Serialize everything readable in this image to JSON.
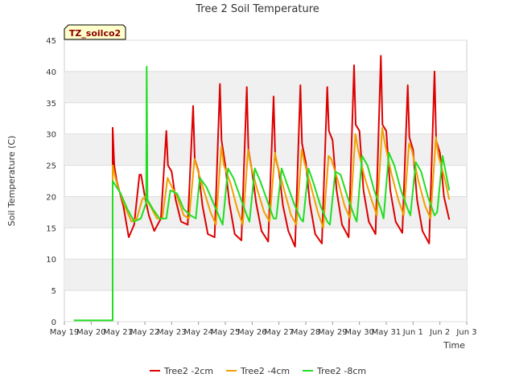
{
  "chart_data": {
    "type": "line",
    "title": "Tree 2 Soil Temperature",
    "xlabel": "Time",
    "ylabel": "Soil Temperature (C)",
    "badge": "TZ_soilco2",
    "ylim": [
      0,
      45
    ],
    "yticks": [
      0,
      5,
      10,
      15,
      20,
      25,
      30,
      35,
      40,
      45
    ],
    "xlim": [
      0,
      15
    ],
    "xtick_labels": [
      "May 19",
      "May 20",
      "May 21",
      "May 22",
      "May 23",
      "May 24",
      "May 25",
      "May 26",
      "May 27",
      "May 28",
      "May 29",
      "May 30",
      "May 31",
      "Jun 1",
      "Jun 2",
      "Jun 3"
    ],
    "grid": true,
    "legend_position": "bottom-center",
    "series": [
      {
        "name": "Tree2 -2cm",
        "color": "#dd0000",
        "x": [
          1.8,
          1.8,
          1.86,
          1.95,
          2.2,
          2.4,
          2.6,
          2.8,
          2.86,
          3.0,
          3.15,
          3.35,
          3.6,
          3.8,
          3.86,
          4.0,
          4.15,
          4.35,
          4.6,
          4.8,
          4.86,
          5.0,
          5.15,
          5.35,
          5.6,
          5.8,
          5.86,
          6.0,
          6.15,
          6.35,
          6.6,
          6.8,
          6.86,
          7.0,
          7.15,
          7.35,
          7.6,
          7.8,
          7.86,
          8.0,
          8.15,
          8.35,
          8.6,
          8.8,
          8.86,
          9.0,
          9.15,
          9.35,
          9.6,
          9.8,
          9.86,
          10.0,
          10.15,
          10.35,
          10.6,
          10.8,
          10.86,
          11.0,
          11.15,
          11.35,
          11.6,
          11.8,
          11.86,
          12.0,
          12.15,
          12.35,
          12.6,
          12.8,
          12.86,
          13.0,
          13.15,
          13.35,
          13.6,
          13.8,
          13.86,
          14.0,
          14.15,
          14.35
        ],
        "y": [
          0.2,
          31.0,
          25.0,
          22.5,
          18.5,
          13.5,
          15.5,
          23.5,
          23.5,
          20.0,
          17.0,
          14.5,
          16.5,
          30.5,
          25.0,
          24.0,
          19.5,
          16.0,
          15.5,
          34.5,
          26.0,
          24.0,
          18.5,
          14.0,
          13.5,
          38.0,
          29.0,
          25.0,
          19.0,
          14.0,
          13.0,
          37.5,
          27.5,
          24.0,
          19.0,
          14.5,
          12.8,
          36.0,
          26.5,
          24.0,
          18.5,
          14.5,
          12.0,
          37.8,
          28.5,
          25.5,
          19.0,
          14.0,
          12.5,
          37.5,
          30.5,
          29.0,
          21.0,
          15.5,
          13.5,
          41.0,
          31.5,
          30.5,
          21.0,
          16.0,
          14.0,
          42.5,
          31.5,
          30.5,
          21.0,
          16.0,
          14.2,
          37.8,
          29.5,
          27.5,
          19.5,
          14.5,
          12.5,
          40.0,
          29.0,
          27.0,
          20.0,
          16.3
        ]
      },
      {
        "name": "Tree2 -4cm",
        "color": "#f0a000",
        "x": [
          1.8,
          1.8,
          1.9,
          2.0,
          2.25,
          2.5,
          2.7,
          2.9,
          3.0,
          3.2,
          3.45,
          3.65,
          3.85,
          3.95,
          4.2,
          4.45,
          4.65,
          4.85,
          4.95,
          5.2,
          5.45,
          5.65,
          5.85,
          5.95,
          6.2,
          6.45,
          6.65,
          6.85,
          6.95,
          7.2,
          7.45,
          7.65,
          7.85,
          7.95,
          8.2,
          8.45,
          8.65,
          8.85,
          8.95,
          9.2,
          9.45,
          9.65,
          9.85,
          9.95,
          10.2,
          10.45,
          10.65,
          10.85,
          10.95,
          11.2,
          11.45,
          11.65,
          11.85,
          11.95,
          12.2,
          12.45,
          12.65,
          12.85,
          12.95,
          13.2,
          13.45,
          13.65,
          13.85,
          13.95,
          14.2,
          14.35
        ],
        "y": [
          0.2,
          25.0,
          23.0,
          21.5,
          18.5,
          16.0,
          16.5,
          19.5,
          20.0,
          18.5,
          16.5,
          16.5,
          23.0,
          22.0,
          20.0,
          17.0,
          16.5,
          26.0,
          24.5,
          21.0,
          17.5,
          15.5,
          28.0,
          25.0,
          22.0,
          18.0,
          15.5,
          27.5,
          25.0,
          21.0,
          17.5,
          16.0,
          27.0,
          25.0,
          21.0,
          17.0,
          15.5,
          27.5,
          25.5,
          21.5,
          17.5,
          15.0,
          26.5,
          26.0,
          22.5,
          18.5,
          16.5,
          30.0,
          27.5,
          23.0,
          19.5,
          17.0,
          31.0,
          28.5,
          23.5,
          19.5,
          17.0,
          28.5,
          27.5,
          22.5,
          18.5,
          16.5,
          29.5,
          26.5,
          22.5,
          19.5
        ]
      },
      {
        "name": "Tree2 -8cm",
        "color": "#22dd22",
        "x": [
          0.35,
          1.8,
          1.8,
          1.95,
          2.1,
          2.35,
          2.6,
          2.85,
          3.05,
          3.07,
          3.1,
          3.3,
          3.55,
          3.8,
          3.95,
          4.2,
          4.45,
          4.7,
          4.9,
          5.05,
          5.3,
          5.55,
          5.8,
          5.9,
          6.1,
          6.3,
          6.55,
          6.8,
          6.9,
          7.1,
          7.3,
          7.55,
          7.8,
          7.9,
          8.1,
          8.3,
          8.55,
          8.8,
          8.9,
          9.1,
          9.3,
          9.55,
          9.8,
          9.9,
          10.1,
          10.3,
          10.55,
          10.8,
          10.9,
          11.1,
          11.3,
          11.55,
          11.8,
          11.9,
          12.1,
          12.3,
          12.55,
          12.8,
          12.9,
          13.1,
          13.3,
          13.55,
          13.8,
          13.9,
          14.1,
          14.35
        ],
        "y": [
          0.2,
          0.2,
          22.5,
          21.5,
          20.5,
          18.0,
          16.0,
          16.5,
          19.0,
          40.8,
          19.5,
          18.0,
          16.5,
          16.5,
          21.0,
          20.5,
          18.0,
          17.0,
          16.5,
          23.0,
          21.5,
          19.0,
          16.5,
          15.5,
          24.5,
          23.0,
          20.0,
          17.0,
          16.0,
          24.5,
          22.5,
          19.5,
          16.5,
          16.5,
          24.5,
          22.0,
          19.0,
          16.5,
          16.0,
          24.5,
          22.0,
          18.5,
          16.0,
          15.5,
          24.0,
          23.5,
          20.0,
          17.0,
          16.0,
          26.5,
          25.0,
          21.0,
          18.0,
          16.5,
          27.0,
          25.0,
          21.0,
          18.0,
          17.0,
          25.5,
          24.0,
          20.0,
          17.0,
          17.5,
          26.5,
          21.0
        ]
      }
    ]
  }
}
